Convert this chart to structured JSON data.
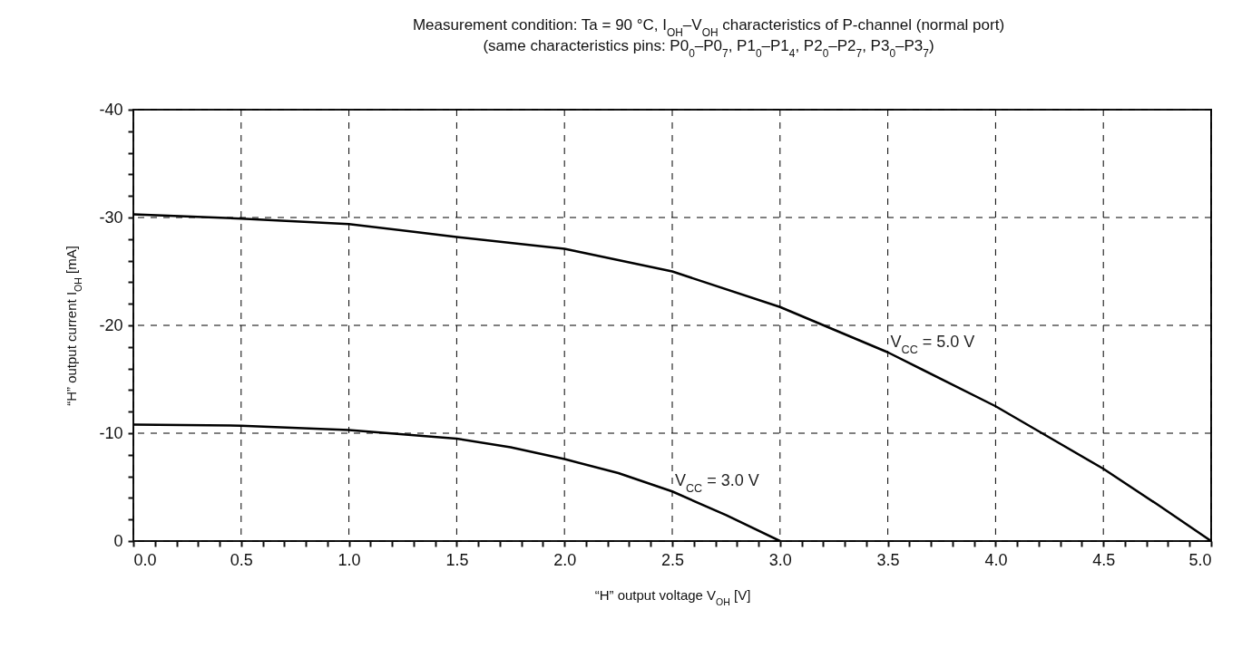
{
  "chart_data": {
    "type": "line",
    "title": "Measurement condition: Ta = 90 °C, I$_{OH}$–V$_{OH}$ characteristics of P-channel (normal port)",
    "subtitle": "(same characteristics pins: P0$_{0}$–P0$_{7}$, P1$_{0}$–P1$_{4}$, P2$_{0}$–P2$_{7}$, P3$_{0}$–P3$_{7}$)",
    "xlabel": "“H” output voltage V$_{OH}$ [V]",
    "ylabel": "“H” output current I$_{OH}$ [mA]",
    "xlim": [
      0,
      5
    ],
    "ylim": [
      0,
      -40
    ],
    "xticks": [
      {
        "value": 0,
        "label": "0.0"
      },
      {
        "value": 0.1,
        "label": null
      },
      {
        "value": 0.2,
        "label": null
      },
      {
        "value": 0.3,
        "label": null
      },
      {
        "value": 0.4,
        "label": null
      },
      {
        "value": 0.5,
        "label": "0.5"
      },
      {
        "value": 0.6,
        "label": null
      },
      {
        "value": 0.7,
        "label": null
      },
      {
        "value": 0.8,
        "label": null
      },
      {
        "value": 0.9,
        "label": null
      },
      {
        "value": 1,
        "label": "1.0"
      },
      {
        "value": 1.1,
        "label": null
      },
      {
        "value": 1.2,
        "label": null
      },
      {
        "value": 1.3,
        "label": null
      },
      {
        "value": 1.4,
        "label": null
      },
      {
        "value": 1.5,
        "label": "1.5"
      },
      {
        "value": 1.6,
        "label": null
      },
      {
        "value": 1.7,
        "label": null
      },
      {
        "value": 1.8,
        "label": null
      },
      {
        "value": 1.9,
        "label": null
      },
      {
        "value": 2,
        "label": "2.0"
      },
      {
        "value": 2.1,
        "label": null
      },
      {
        "value": 2.2,
        "label": null
      },
      {
        "value": 2.3,
        "label": null
      },
      {
        "value": 2.4,
        "label": null
      },
      {
        "value": 2.5,
        "label": "2.5"
      },
      {
        "value": 2.6,
        "label": null
      },
      {
        "value": 2.7,
        "label": null
      },
      {
        "value": 2.8,
        "label": null
      },
      {
        "value": 2.9,
        "label": null
      },
      {
        "value": 3,
        "label": "3.0"
      },
      {
        "value": 3.1,
        "label": null
      },
      {
        "value": 3.2,
        "label": null
      },
      {
        "value": 3.3,
        "label": null
      },
      {
        "value": 3.4,
        "label": null
      },
      {
        "value": 3.5,
        "label": "3.5"
      },
      {
        "value": 3.6,
        "label": null
      },
      {
        "value": 3.7,
        "label": null
      },
      {
        "value": 3.8,
        "label": null
      },
      {
        "value": 3.9,
        "label": null
      },
      {
        "value": 4,
        "label": "4.0"
      },
      {
        "value": 4.1,
        "label": null
      },
      {
        "value": 4.2,
        "label": null
      },
      {
        "value": 4.3,
        "label": null
      },
      {
        "value": 4.4,
        "label": null
      },
      {
        "value": 4.5,
        "label": "4.5"
      },
      {
        "value": 4.6,
        "label": null
      },
      {
        "value": 4.7,
        "label": null
      },
      {
        "value": 4.8,
        "label": null
      },
      {
        "value": 4.9,
        "label": null
      },
      {
        "value": 5,
        "label": "5.0"
      }
    ],
    "yticks": [
      -40,
      {
        "value": -38,
        "label": null
      },
      {
        "value": -36,
        "label": null
      },
      {
        "value": -34,
        "label": null
      },
      {
        "value": -32,
        "label": null
      },
      -30,
      {
        "value": -28,
        "label": null
      },
      {
        "value": -26,
        "label": null
      },
      {
        "value": -24,
        "label": null
      },
      {
        "value": -22,
        "label": null
      },
      -20,
      {
        "value": -18,
        "label": null
      },
      {
        "value": -16,
        "label": null
      },
      {
        "value": -14,
        "label": null
      },
      {
        "value": -12,
        "label": null
      },
      -10,
      {
        "value": -8,
        "label": null
      },
      {
        "value": -6,
        "label": null
      },
      {
        "value": -4,
        "label": null
      },
      {
        "value": -2,
        "label": null
      },
      0
    ],
    "grid": true,
    "line_style": "solid",
    "series": [
      {
        "name": "V$_{CC}$ = 5.0 V",
        "color": "#000000",
        "x": [
          0,
          0.5,
          1,
          1.5,
          2,
          2.5,
          3,
          3.5,
          4,
          4.25,
          4.5,
          4.75,
          5
        ],
        "values": [
          -30.3,
          -29.9,
          -29.4,
          -28.2,
          -27.1,
          -25.0,
          -21.7,
          -17.5,
          -12.5,
          -9.6,
          -6.7,
          -3.4,
          0
        ]
      },
      {
        "name": "V$_{CC}$ = 3.0 V",
        "color": "#000000",
        "x": [
          0,
          0.5,
          1,
          1.5,
          1.75,
          2,
          2.25,
          2.5,
          2.75,
          3
        ],
        "values": [
          -10.8,
          -10.7,
          -10.3,
          -9.5,
          -8.7,
          -7.6,
          -6.3,
          -4.6,
          -2.4,
          0
        ]
      }
    ]
  }
}
